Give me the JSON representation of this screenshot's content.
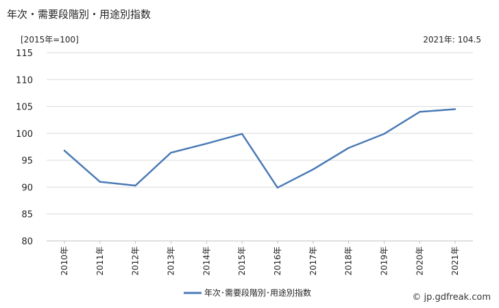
{
  "title": "年次・需要段階別・用途別指数",
  "unit_label": "[2015年=100]",
  "latest_label": "2021年: 104.5",
  "source": "© jp.gdfreak.com",
  "colors": {
    "line": "#4a7ab5",
    "grid": "#d9d9d9",
    "axis": "#bfbfbf"
  },
  "chart_data": {
    "type": "line",
    "title": "年次・需要段階別・用途別指数",
    "xlabel": "",
    "ylabel": "",
    "ylim": [
      80,
      115
    ],
    "yticks": [
      80,
      85,
      90,
      95,
      100,
      105,
      110,
      115
    ],
    "grid": true,
    "legend": "bottom-center",
    "categories": [
      "2010年",
      "2011年",
      "2012年",
      "2013年",
      "2014年",
      "2015年",
      "2016年",
      "2017年",
      "2018年",
      "2019年",
      "2020年",
      "2021年"
    ],
    "series": [
      {
        "name": "年次･需要段階別･用途別指数",
        "values": [
          96.8,
          91.0,
          90.3,
          96.4,
          98.1,
          99.9,
          89.9,
          93.3,
          97.3,
          99.9,
          104.0,
          104.5
        ]
      }
    ]
  }
}
